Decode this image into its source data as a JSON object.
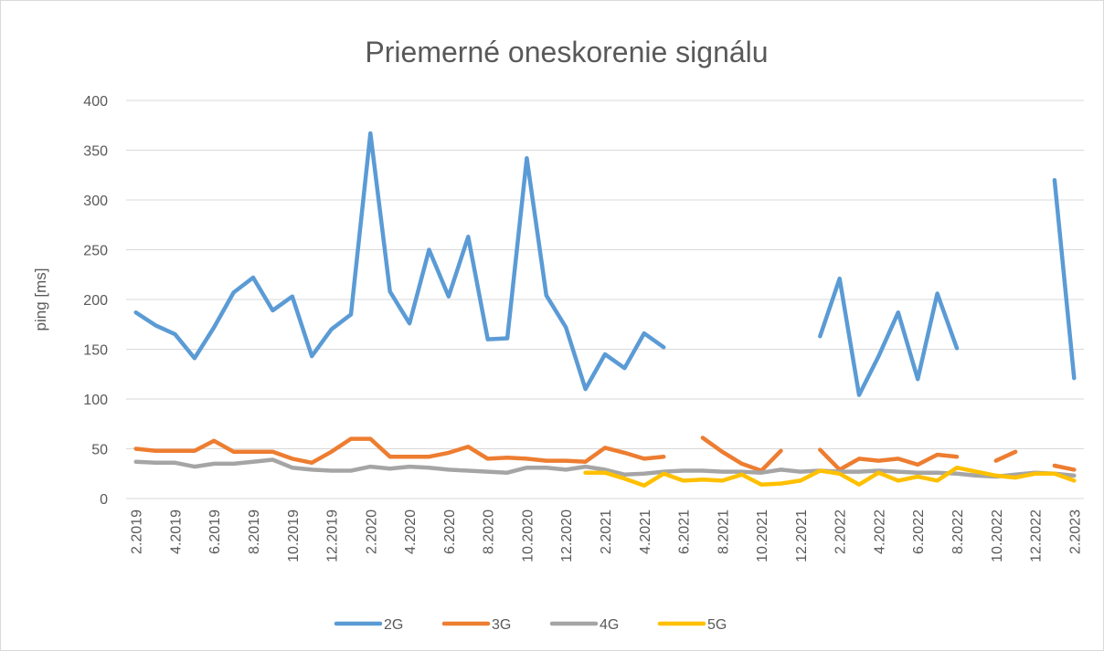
{
  "chart_data": {
    "type": "line",
    "title": "Priemerné oneskorenie signálu",
    "y_label": "ping [ms]",
    "categories": [
      "2.2019",
      null,
      "4.2019",
      null,
      "6.2019",
      null,
      "8.2019",
      null,
      "10.2019",
      null,
      "12.2019",
      null,
      "2.2020",
      null,
      "4.2020",
      null,
      "6.2020",
      null,
      "8.2020",
      null,
      "10.2020",
      null,
      "12.2020",
      null,
      "2.2021",
      null,
      "4.2021",
      null,
      "6.2021",
      null,
      "8.2021",
      null,
      "10.2021",
      null,
      "12.2021",
      null,
      "2.2022",
      null,
      "4.2022",
      null,
      "6.2022",
      null,
      "8.2022",
      null,
      "10.2022",
      null,
      "12.2022",
      null,
      "2.2023"
    ],
    "series": [
      {
        "name": "2G",
        "color": "#5b9bd5",
        "values": [
          187,
          174,
          165,
          141,
          172,
          207,
          222,
          189,
          203,
          143,
          170,
          185,
          367,
          208,
          176,
          250,
          203,
          263,
          160,
          161,
          342,
          204,
          172,
          110,
          145,
          131,
          166,
          152,
          null,
          null,
          null,
          null,
          null,
          null,
          null,
          163,
          221,
          104,
          143,
          187,
          120,
          206,
          151,
          null,
          null,
          null,
          null,
          320,
          121
        ]
      },
      {
        "name": "3G",
        "color": "#ed7d31",
        "values": [
          50,
          48,
          48,
          48,
          58,
          47,
          47,
          47,
          40,
          36,
          47,
          60,
          60,
          42,
          42,
          42,
          46,
          52,
          40,
          41,
          40,
          38,
          38,
          37,
          51,
          46,
          40,
          42,
          null,
          61,
          47,
          35,
          28,
          48,
          null,
          49,
          29,
          40,
          38,
          40,
          34,
          44,
          42,
          null,
          38,
          47,
          null,
          33,
          29
        ]
      },
      {
        "name": "4G",
        "color": "#a5a5a5",
        "values": [
          37,
          36,
          36,
          32,
          35,
          35,
          37,
          39,
          31,
          29,
          28,
          28,
          32,
          30,
          32,
          31,
          29,
          28,
          27,
          26,
          31,
          31,
          29,
          32,
          29,
          24,
          25,
          27,
          28,
          28,
          27,
          27,
          26,
          29,
          27,
          28,
          27,
          27,
          28,
          27,
          26,
          26,
          25,
          23,
          22,
          24,
          26,
          25,
          23
        ]
      },
      {
        "name": "5G",
        "color": "#ffc000",
        "values": [
          null,
          null,
          null,
          null,
          null,
          null,
          null,
          null,
          null,
          null,
          null,
          null,
          null,
          null,
          null,
          null,
          null,
          null,
          null,
          null,
          null,
          null,
          null,
          26,
          26,
          20,
          13,
          25,
          18,
          19,
          18,
          24,
          14,
          15,
          18,
          28,
          25,
          14,
          26,
          18,
          22,
          18,
          31,
          27,
          23,
          21,
          25,
          25,
          18
        ]
      }
    ],
    "ylim": [
      0,
      400
    ],
    "yticks": [
      0,
      50,
      100,
      150,
      200,
      250,
      300,
      350,
      400
    ],
    "grid": true,
    "legend": "bottom"
  }
}
